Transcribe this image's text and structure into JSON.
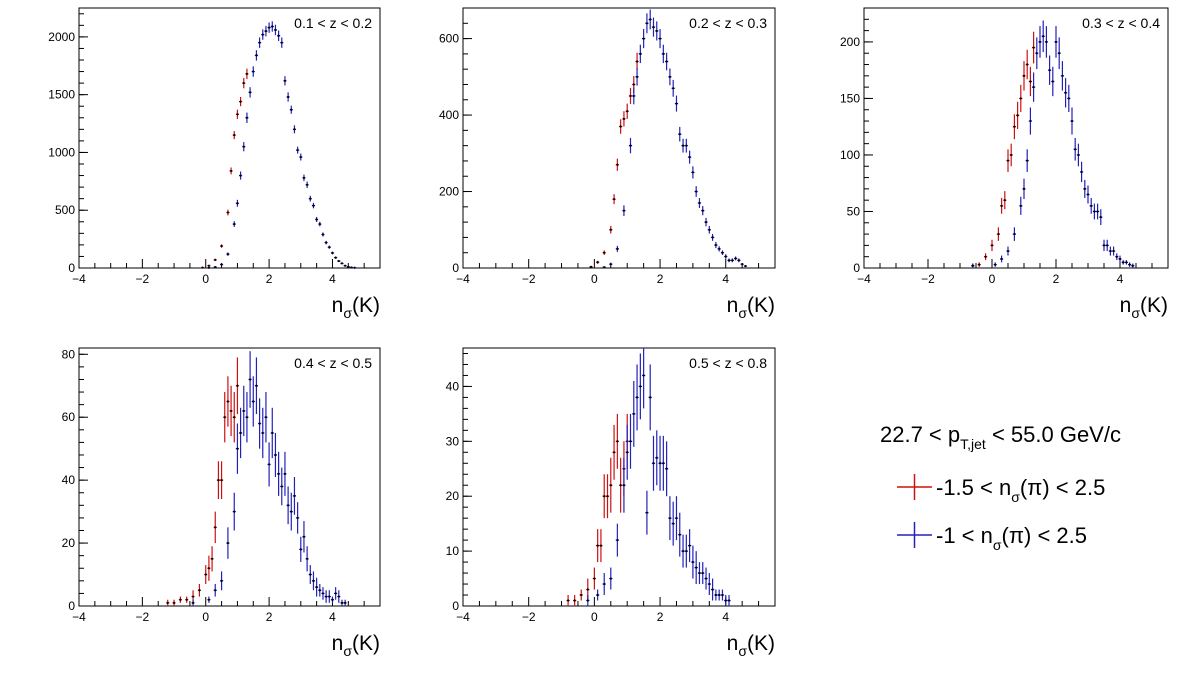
{
  "colors": {
    "red": "#cc1111",
    "blue": "#2222bb",
    "frame": "#000000"
  },
  "legend": {
    "header": {
      "pre": "22.7 < p",
      "sub": "T,jet",
      "post": " < 55.0 GeV/c"
    },
    "entries": [
      {
        "color": "#cc1111",
        "pre": "-1.5 < n",
        "sub": "σ",
        "post": "(π) < 2.5"
      },
      {
        "color": "#2222bb",
        "pre": "-1 < n",
        "sub": "σ",
        "post": "(π) < 2.5"
      }
    ]
  },
  "chart_data": [
    {
      "type": "scatter",
      "title": "0.1 < z < 0.2",
      "xlabel": {
        "main": "n",
        "sub": "σ",
        "post": "(K)"
      },
      "xlim": [
        -4,
        5.5
      ],
      "ylim": [
        0,
        2250
      ],
      "xticks": [
        -4,
        -2,
        0,
        2,
        4
      ],
      "yticks": [
        0,
        500,
        1000,
        1500,
        2000
      ],
      "series": [
        {
          "color": "red",
          "x": [
            -0.1,
            0.1,
            0.3,
            0.5,
            0.7,
            0.8,
            0.9,
            1.0,
            1.1,
            1.2,
            1.3
          ],
          "y": [
            3,
            20,
            70,
            190,
            480,
            840,
            1150,
            1330,
            1440,
            1600,
            1680
          ],
          "err": [
            3,
            6,
            10,
            15,
            25,
            30,
            35,
            40,
            40,
            45,
            45
          ]
        },
        {
          "color": "blue",
          "x": [
            0.1,
            0.3,
            0.5,
            0.7,
            0.9,
            1.0,
            1.1,
            1.2,
            1.3,
            1.4,
            1.5,
            1.6,
            1.7,
            1.8,
            1.9,
            2.0,
            2.1,
            2.2,
            2.3,
            2.4,
            2.5,
            2.6,
            2.7,
            2.8,
            2.9,
            3.0,
            3.1,
            3.2,
            3.3,
            3.4,
            3.5,
            3.6,
            3.7,
            3.8,
            3.9,
            4.0,
            4.1,
            4.2,
            4.3,
            4.4,
            4.5,
            4.6,
            4.7
          ],
          "y": [
            2,
            8,
            30,
            120,
            380,
            560,
            800,
            1050,
            1300,
            1520,
            1700,
            1840,
            1950,
            2020,
            2050,
            2080,
            2090,
            2060,
            2010,
            1950,
            1620,
            1480,
            1370,
            1200,
            1020,
            960,
            780,
            720,
            600,
            540,
            420,
            380,
            290,
            220,
            180,
            130,
            90,
            60,
            40,
            20,
            10,
            5,
            2
          ],
          "err": [
            2,
            4,
            8,
            15,
            25,
            30,
            35,
            40,
            45,
            45,
            45,
            45,
            45,
            45,
            45,
            45,
            45,
            45,
            45,
            45,
            40,
            40,
            35,
            35,
            30,
            30,
            28,
            28,
            25,
            24,
            22,
            20,
            18,
            15,
            14,
            12,
            10,
            8,
            6,
            5,
            3,
            2,
            2
          ]
        }
      ]
    },
    {
      "type": "scatter",
      "title": "0.2 < z < 0.3",
      "xlabel": {
        "main": "n",
        "sub": "σ",
        "post": "(K)"
      },
      "xlim": [
        -4,
        5.5
      ],
      "ylim": [
        0,
        680
      ],
      "xticks": [
        -4,
        -2,
        0,
        2,
        4
      ],
      "yticks": [
        0,
        200,
        400,
        600
      ],
      "series": [
        {
          "color": "red",
          "x": [
            -0.1,
            0.1,
            0.3,
            0.5,
            0.6,
            0.7,
            0.8,
            0.9,
            1.0,
            1.1,
            1.2,
            1.3
          ],
          "y": [
            3,
            15,
            40,
            100,
            180,
            270,
            370,
            390,
            410,
            450,
            480,
            540
          ],
          "err": [
            2,
            4,
            6,
            10,
            13,
            16,
            19,
            20,
            20,
            21,
            22,
            23
          ]
        },
        {
          "color": "blue",
          "x": [
            0.3,
            0.5,
            0.7,
            0.9,
            1.1,
            1.2,
            1.3,
            1.4,
            1.5,
            1.6,
            1.7,
            1.8,
            1.9,
            2.0,
            2.1,
            2.2,
            2.3,
            2.4,
            2.5,
            2.6,
            2.7,
            2.8,
            2.9,
            3.0,
            3.1,
            3.2,
            3.3,
            3.4,
            3.5,
            3.6,
            3.7,
            3.8,
            3.9,
            4.0,
            4.1,
            4.2,
            4.3,
            4.4,
            4.5,
            4.6
          ],
          "y": [
            2,
            10,
            50,
            150,
            320,
            450,
            500,
            560,
            600,
            640,
            650,
            630,
            620,
            600,
            560,
            540,
            500,
            470,
            430,
            350,
            320,
            320,
            290,
            250,
            200,
            170,
            150,
            120,
            100,
            80,
            60,
            50,
            40,
            30,
            20,
            20,
            25,
            20,
            10,
            5
          ],
          "err": [
            2,
            4,
            8,
            14,
            20,
            22,
            23,
            24,
            25,
            26,
            26,
            25,
            25,
            25,
            24,
            23,
            22,
            22,
            21,
            19,
            18,
            18,
            17,
            16,
            14,
            13,
            12,
            11,
            10,
            9,
            8,
            7,
            6,
            6,
            5,
            5,
            5,
            5,
            3,
            2
          ]
        }
      ]
    },
    {
      "type": "scatter",
      "title": "0.3 < z < 0.4",
      "xlabel": {
        "main": "n",
        "sub": "σ",
        "post": "(K)"
      },
      "xlim": [
        -4,
        5.5
      ],
      "ylim": [
        0,
        230
      ],
      "xticks": [
        -4,
        -2,
        0,
        2,
        4
      ],
      "yticks": [
        0,
        50,
        100,
        150,
        200
      ],
      "series": [
        {
          "color": "red",
          "x": [
            -0.6,
            -0.4,
            -0.2,
            0.0,
            0.2,
            0.3,
            0.4,
            0.5,
            0.6,
            0.7,
            0.8,
            0.9,
            1.0,
            1.1,
            1.2,
            1.3
          ],
          "y": [
            2,
            3,
            10,
            20,
            30,
            55,
            60,
            95,
            100,
            125,
            135,
            150,
            170,
            180,
            165,
            195
          ],
          "err": [
            2,
            2,
            3,
            5,
            6,
            7,
            8,
            10,
            10,
            11,
            12,
            12,
            13,
            13,
            13,
            14
          ]
        },
        {
          "color": "blue",
          "x": [
            -0.6,
            0.1,
            0.3,
            0.5,
            0.7,
            0.9,
            1.0,
            1.1,
            1.2,
            1.3,
            1.4,
            1.5,
            1.6,
            1.7,
            1.8,
            1.9,
            2.0,
            2.1,
            2.2,
            2.3,
            2.4,
            2.5,
            2.6,
            2.7,
            2.8,
            2.9,
            3.0,
            3.1,
            3.2,
            3.3,
            3.4,
            3.5,
            3.6,
            3.7,
            3.8,
            3.9,
            4.0,
            4.1,
            4.2,
            4.3,
            4.4
          ],
          "y": [
            2,
            3,
            8,
            15,
            30,
            55,
            70,
            95,
            130,
            160,
            190,
            200,
            205,
            200,
            175,
            165,
            200,
            190,
            170,
            155,
            150,
            130,
            105,
            100,
            85,
            70,
            65,
            55,
            50,
            50,
            45,
            20,
            20,
            15,
            15,
            10,
            8,
            5,
            5,
            3,
            2
          ],
          "err": [
            2,
            2,
            3,
            4,
            6,
            8,
            9,
            10,
            12,
            13,
            14,
            14,
            14,
            14,
            13,
            13,
            14,
            14,
            13,
            13,
            12,
            12,
            10,
            10,
            9,
            8,
            8,
            7,
            7,
            7,
            7,
            5,
            5,
            4,
            4,
            3,
            3,
            2,
            2,
            2,
            2
          ]
        }
      ]
    },
    {
      "type": "scatter",
      "title": "0.4 < z < 0.5",
      "xlabel": {
        "main": "n",
        "sub": "σ",
        "post": "(K)"
      },
      "xlim": [
        -4,
        5.5
      ],
      "ylim": [
        0,
        82
      ],
      "xticks": [
        -4,
        -2,
        0,
        2,
        4
      ],
      "yticks": [
        0,
        20,
        40,
        60,
        80
      ],
      "series": [
        {
          "color": "red",
          "x": [
            -1.2,
            -1.0,
            -0.8,
            -0.6,
            -0.4,
            -0.2,
            0.0,
            0.1,
            0.2,
            0.3,
            0.4,
            0.5,
            0.6,
            0.7,
            0.8,
            0.9,
            1.0
          ],
          "y": [
            1,
            1,
            2,
            2,
            3,
            5,
            10,
            12,
            15,
            25,
            40,
            40,
            60,
            65,
            62,
            60,
            70
          ],
          "err": [
            1,
            1,
            1,
            1,
            2,
            2,
            3,
            4,
            4,
            5,
            6,
            6,
            8,
            8,
            8,
            8,
            9
          ]
        },
        {
          "color": "blue",
          "x": [
            -0.4,
            0.1,
            0.3,
            0.5,
            0.7,
            0.9,
            1.0,
            1.1,
            1.2,
            1.3,
            1.4,
            1.5,
            1.6,
            1.7,
            1.8,
            1.9,
            2.0,
            2.1,
            2.2,
            2.3,
            2.4,
            2.5,
            2.6,
            2.7,
            2.8,
            2.9,
            3.0,
            3.1,
            3.2,
            3.3,
            3.4,
            3.5,
            3.6,
            3.7,
            3.8,
            3.9,
            4.0,
            4.1,
            4.2,
            4.3,
            4.4
          ],
          "y": [
            1,
            2,
            5,
            8,
            20,
            30,
            50,
            55,
            62,
            60,
            72,
            65,
            70,
            58,
            55,
            60,
            45,
            55,
            48,
            42,
            38,
            42,
            32,
            30,
            35,
            28,
            18,
            22,
            15,
            10,
            8,
            6,
            5,
            4,
            3,
            3,
            2,
            4,
            3,
            1,
            1
          ],
          "err": [
            1,
            1,
            2,
            3,
            5,
            6,
            8,
            8,
            8,
            8,
            9,
            8,
            9,
            8,
            8,
            8,
            7,
            8,
            7,
            7,
            6,
            7,
            6,
            6,
            6,
            5,
            4,
            5,
            4,
            3,
            3,
            3,
            2,
            2,
            2,
            2,
            1,
            2,
            2,
            1,
            1
          ]
        }
      ]
    },
    {
      "type": "scatter",
      "title": "0.5 < z < 0.8",
      "xlabel": {
        "main": "n",
        "sub": "σ",
        "post": "(K)"
      },
      "xlim": [
        -4,
        5.5
      ],
      "ylim": [
        0,
        47
      ],
      "xticks": [
        -4,
        -2,
        0,
        2,
        4
      ],
      "yticks": [
        0,
        10,
        20,
        30,
        40
      ],
      "series": [
        {
          "color": "red",
          "x": [
            -0.8,
            -0.6,
            -0.4,
            -0.2,
            0.0,
            0.1,
            0.2,
            0.3,
            0.4,
            0.5,
            0.6,
            0.7,
            0.8,
            0.9,
            1.0
          ],
          "y": [
            1,
            1,
            2,
            3,
            5,
            11,
            11,
            20,
            20,
            22,
            28,
            30,
            22,
            25,
            30
          ],
          "err": [
            1,
            1,
            1,
            2,
            2,
            3,
            3,
            4,
            4,
            5,
            5,
            5,
            5,
            5,
            5
          ]
        },
        {
          "color": "blue",
          "x": [
            -0.2,
            0.1,
            0.3,
            0.5,
            0.7,
            0.9,
            1.0,
            1.1,
            1.2,
            1.3,
            1.4,
            1.5,
            1.6,
            1.7,
            1.8,
            1.9,
            2.0,
            2.1,
            2.2,
            2.3,
            2.4,
            2.5,
            2.6,
            2.7,
            2.8,
            2.9,
            3.0,
            3.1,
            3.2,
            3.3,
            3.4,
            3.5,
            3.6,
            3.7,
            3.8,
            3.9,
            4.0,
            4.1
          ],
          "y": [
            1,
            2,
            4,
            5,
            12,
            22,
            28,
            30,
            35,
            38,
            40,
            42,
            17,
            38,
            26,
            27,
            26,
            26,
            25,
            16,
            15,
            16,
            13,
            10,
            10,
            11,
            8,
            7,
            6,
            6,
            5,
            4,
            3,
            2,
            2,
            2,
            1,
            1
          ],
          "err": [
            1,
            1,
            2,
            2,
            3,
            5,
            5,
            5,
            6,
            6,
            6,
            6,
            4,
            6,
            5,
            5,
            5,
            5,
            5,
            4,
            4,
            4,
            4,
            3,
            3,
            3,
            3,
            3,
            2,
            2,
            2,
            2,
            2,
            1,
            1,
            1,
            1,
            1
          ]
        }
      ]
    }
  ]
}
